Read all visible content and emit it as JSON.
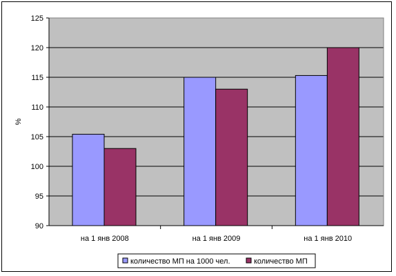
{
  "chart_data": {
    "type": "bar",
    "title": "",
    "xlabel": "",
    "ylabel": "%",
    "ylim": [
      90,
      125
    ],
    "yticks": [
      90,
      95,
      100,
      105,
      110,
      115,
      120,
      125
    ],
    "categories": [
      "на 1 янв 2008",
      "на 1 янв 2009",
      "на 1 янв 2010"
    ],
    "series": [
      {
        "name": "количество МП на 1000 чел.",
        "values": [
          105.4,
          115.0,
          115.3
        ],
        "color": "#9999ff"
      },
      {
        "name": "количество МП",
        "values": [
          103.0,
          113.0,
          120.0
        ],
        "color": "#993366"
      }
    ],
    "plot_background": "#c0c0c0",
    "grid": true,
    "legend_position": "bottom"
  }
}
